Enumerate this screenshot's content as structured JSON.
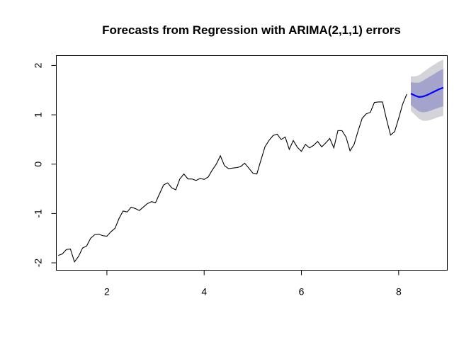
{
  "chart_data": {
    "type": "line",
    "title": "Forecasts from Regression with ARIMA(2,1,1) errors",
    "xlabel": "",
    "ylabel": "",
    "xlim": [
      0.96,
      9.0
    ],
    "ylim": [
      -2.15,
      2.2
    ],
    "x_ticks": [
      2,
      4,
      6,
      8
    ],
    "y_ticks": [
      -2,
      -1,
      0,
      1,
      2
    ],
    "grid": false,
    "legend": "none",
    "colors": {
      "observed": "#000000",
      "forecast_mean": "#0000ff",
      "interval_80": "#a3a3cc",
      "interval_95": "#d3d3d9"
    },
    "series": [
      {
        "x": [
          1.0,
          1.083,
          1.167,
          1.25,
          1.333,
          1.417,
          1.5,
          1.583,
          1.667,
          1.75,
          1.833,
          1.917,
          2.0,
          2.083,
          2.167,
          2.25,
          2.333,
          2.417,
          2.5,
          2.583,
          2.667,
          2.75,
          2.833,
          2.917,
          3.0,
          3.083,
          3.167,
          3.25,
          3.333,
          3.417,
          3.5,
          3.583,
          3.667,
          3.75,
          3.833,
          3.917,
          4.0,
          4.083,
          4.167,
          4.25,
          4.333,
          4.417,
          4.5,
          4.583,
          4.667,
          4.75,
          4.833,
          4.917,
          5.0,
          5.083,
          5.167,
          5.25,
          5.333,
          5.417,
          5.5,
          5.583,
          5.667,
          5.75,
          5.833,
          5.917,
          6.0,
          6.083,
          6.167,
          6.25,
          6.333,
          6.417,
          6.5,
          6.583,
          6.667,
          6.75,
          6.833,
          6.917,
          7.0,
          7.083,
          7.167,
          7.25,
          7.333,
          7.417,
          7.5,
          7.583,
          7.667,
          7.75,
          7.833,
          7.917,
          8.0,
          8.083,
          8.167
        ],
        "values": [
          -1.85,
          -1.82,
          -1.73,
          -1.72,
          -1.98,
          -1.87,
          -1.7,
          -1.66,
          -1.5,
          -1.43,
          -1.42,
          -1.45,
          -1.46,
          -1.37,
          -1.3,
          -1.1,
          -0.95,
          -0.97,
          -0.87,
          -0.9,
          -0.94,
          -0.87,
          -0.8,
          -0.76,
          -0.78,
          -0.6,
          -0.42,
          -0.38,
          -0.48,
          -0.52,
          -0.3,
          -0.2,
          -0.3,
          -0.3,
          -0.33,
          -0.29,
          -0.31,
          -0.26,
          -0.12,
          0.0,
          0.17,
          -0.03,
          -0.09,
          -0.08,
          -0.07,
          -0.05,
          0.02,
          -0.08,
          -0.18,
          -0.2,
          0.08,
          0.35,
          0.48,
          0.58,
          0.61,
          0.5,
          0.55,
          0.3,
          0.48,
          0.34,
          0.26,
          0.4,
          0.33,
          0.38,
          0.46,
          0.35,
          0.43,
          0.52,
          0.33,
          0.68,
          0.68,
          0.55,
          0.27,
          0.4,
          0.68,
          0.93,
          1.02,
          1.05,
          1.25,
          1.26,
          1.26,
          0.91,
          0.59,
          0.66,
          0.93,
          1.22,
          1.42
        ]
      },
      {
        "x": [
          8.25,
          8.333,
          8.417,
          8.5,
          8.583,
          8.667,
          8.75,
          8.833,
          8.917
        ],
        "values": [
          1.43,
          1.39,
          1.36,
          1.37,
          1.4,
          1.44,
          1.48,
          1.52,
          1.55
        ],
        "lower_80": [
          1.2,
          1.13,
          1.07,
          1.05,
          1.06,
          1.09,
          1.12,
          1.15,
          1.17
        ],
        "upper_80": [
          1.66,
          1.65,
          1.65,
          1.69,
          1.74,
          1.79,
          1.84,
          1.89,
          1.93
        ],
        "lower_95": [
          1.08,
          1.0,
          0.92,
          0.88,
          0.88,
          0.9,
          0.93,
          0.96,
          0.98
        ],
        "upper_95": [
          1.78,
          1.78,
          1.8,
          1.86,
          1.92,
          1.98,
          2.03,
          2.08,
          2.12
        ]
      }
    ]
  }
}
